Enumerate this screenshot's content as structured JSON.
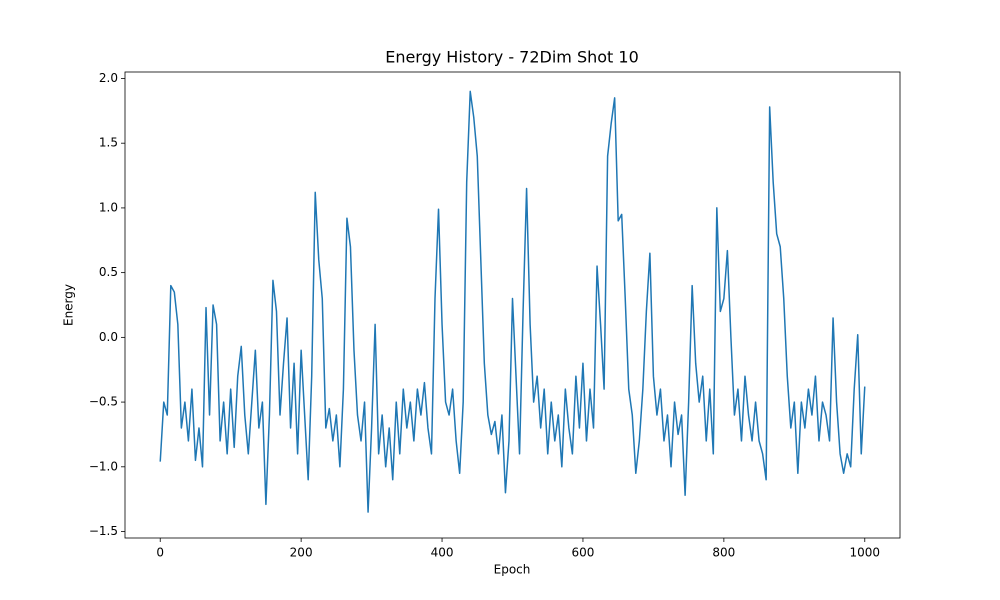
{
  "chart_data": {
    "type": "line",
    "title": "Energy History - 72Dim Shot 10",
    "xlabel": "Epoch",
    "ylabel": "Energy",
    "color": "#1f77b4",
    "x": [
      0,
      5,
      10,
      15,
      20,
      25,
      30,
      35,
      40,
      45,
      50,
      55,
      60,
      65,
      70,
      75,
      80,
      85,
      90,
      95,
      100,
      105,
      110,
      115,
      120,
      125,
      130,
      135,
      140,
      145,
      150,
      155,
      160,
      165,
      170,
      175,
      180,
      185,
      190,
      195,
      200,
      205,
      210,
      215,
      220,
      225,
      230,
      235,
      240,
      245,
      250,
      255,
      260,
      265,
      270,
      275,
      280,
      285,
      290,
      295,
      300,
      305,
      310,
      315,
      320,
      325,
      330,
      335,
      340,
      345,
      350,
      355,
      360,
      365,
      370,
      375,
      380,
      385,
      390,
      395,
      400,
      405,
      410,
      415,
      420,
      425,
      430,
      435,
      440,
      445,
      450,
      455,
      460,
      465,
      470,
      475,
      480,
      485,
      490,
      495,
      500,
      505,
      510,
      515,
      520,
      525,
      530,
      535,
      540,
      545,
      550,
      555,
      560,
      565,
      570,
      575,
      580,
      585,
      590,
      595,
      600,
      605,
      610,
      615,
      620,
      625,
      630,
      635,
      640,
      645,
      650,
      655,
      660,
      665,
      670,
      675,
      680,
      685,
      690,
      695,
      700,
      705,
      710,
      715,
      720,
      725,
      730,
      735,
      740,
      745,
      750,
      755,
      760,
      765,
      770,
      775,
      780,
      785,
      790,
      795,
      800,
      805,
      810,
      815,
      820,
      825,
      830,
      835,
      840,
      845,
      850,
      855,
      860,
      865,
      870,
      875,
      880,
      885,
      890,
      895,
      900,
      905,
      910,
      915,
      920,
      925,
      930,
      935,
      940,
      945,
      950,
      955,
      960,
      965,
      970,
      975,
      980,
      985,
      990,
      995,
      1000
    ],
    "values": [
      -0.96,
      -0.5,
      -0.6,
      0.4,
      0.35,
      0.1,
      -0.7,
      -0.5,
      -0.8,
      -0.4,
      -0.95,
      -0.7,
      -1.0,
      0.23,
      -0.6,
      0.25,
      0.1,
      -0.8,
      -0.5,
      -0.9,
      -0.4,
      -0.85,
      -0.3,
      -0.07,
      -0.6,
      -0.9,
      -0.5,
      -0.1,
      -0.7,
      -0.5,
      -1.29,
      -0.6,
      0.44,
      0.2,
      -0.6,
      -0.2,
      0.15,
      -0.7,
      -0.2,
      -0.9,
      -0.1,
      -0.6,
      -1.1,
      -0.3,
      1.12,
      0.6,
      0.3,
      -0.7,
      -0.55,
      -0.8,
      -0.6,
      -1.0,
      -0.4,
      0.92,
      0.7,
      -0.1,
      -0.6,
      -0.8,
      -0.5,
      -1.35,
      -0.7,
      0.1,
      -0.9,
      -0.6,
      -1.0,
      -0.7,
      -1.1,
      -0.5,
      -0.9,
      -0.4,
      -0.7,
      -0.5,
      -0.8,
      -0.4,
      -0.6,
      -0.35,
      -0.7,
      -0.9,
      0.3,
      0.99,
      0.1,
      -0.5,
      -0.6,
      -0.4,
      -0.8,
      -1.05,
      -0.5,
      1.2,
      1.9,
      1.7,
      1.4,
      0.6,
      -0.2,
      -0.6,
      -0.75,
      -0.65,
      -0.9,
      -0.6,
      -1.2,
      -0.8,
      0.3,
      -0.3,
      -0.9,
      0.2,
      1.15,
      0.1,
      -0.5,
      -0.3,
      -0.7,
      -0.4,
      -0.9,
      -0.5,
      -0.8,
      -0.6,
      -1.0,
      -0.4,
      -0.7,
      -0.9,
      -0.3,
      -0.7,
      -0.2,
      -0.8,
      -0.4,
      -0.7,
      0.55,
      0.1,
      -0.4,
      1.4,
      1.65,
      1.85,
      0.9,
      0.95,
      0.3,
      -0.4,
      -0.6,
      -1.05,
      -0.8,
      -0.4,
      0.2,
      0.65,
      -0.3,
      -0.6,
      -0.4,
      -0.8,
      -0.6,
      -1.0,
      -0.5,
      -0.75,
      -0.6,
      -1.22,
      -0.5,
      0.4,
      -0.2,
      -0.5,
      -0.3,
      -0.8,
      -0.4,
      -0.9,
      1.0,
      0.2,
      0.3,
      0.67,
      0.0,
      -0.6,
      -0.4,
      -0.8,
      -0.3,
      -0.6,
      -0.8,
      -0.5,
      -0.8,
      -0.9,
      -1.1,
      1.78,
      1.2,
      0.8,
      0.7,
      0.3,
      -0.3,
      -0.7,
      -0.5,
      -1.05,
      -0.5,
      -0.7,
      -0.4,
      -0.6,
      -0.3,
      -0.8,
      -0.5,
      -0.6,
      -0.8,
      0.15,
      -0.5,
      -0.9,
      -1.05,
      -0.9,
      -1.0,
      -0.4,
      0.02,
      -0.9,
      -0.38
    ],
    "xlim": [
      -50,
      1050
    ],
    "xticks": [
      0,
      200,
      400,
      600,
      800,
      1000
    ],
    "ylim": [
      -1.55,
      2.05
    ],
    "yticks": [
      {
        "value": -1.5,
        "label": "−1.5"
      },
      {
        "value": -1.0,
        "label": "−1.0"
      },
      {
        "value": -0.5,
        "label": "−0.5"
      },
      {
        "value": 0,
        "label": "0.0"
      },
      {
        "value": 0.5,
        "label": "0.5"
      },
      {
        "value": 1.0,
        "label": "1.0"
      },
      {
        "value": 1.5,
        "label": "1.5"
      },
      {
        "value": 2.0,
        "label": "2.0"
      }
    ],
    "grid": false
  }
}
